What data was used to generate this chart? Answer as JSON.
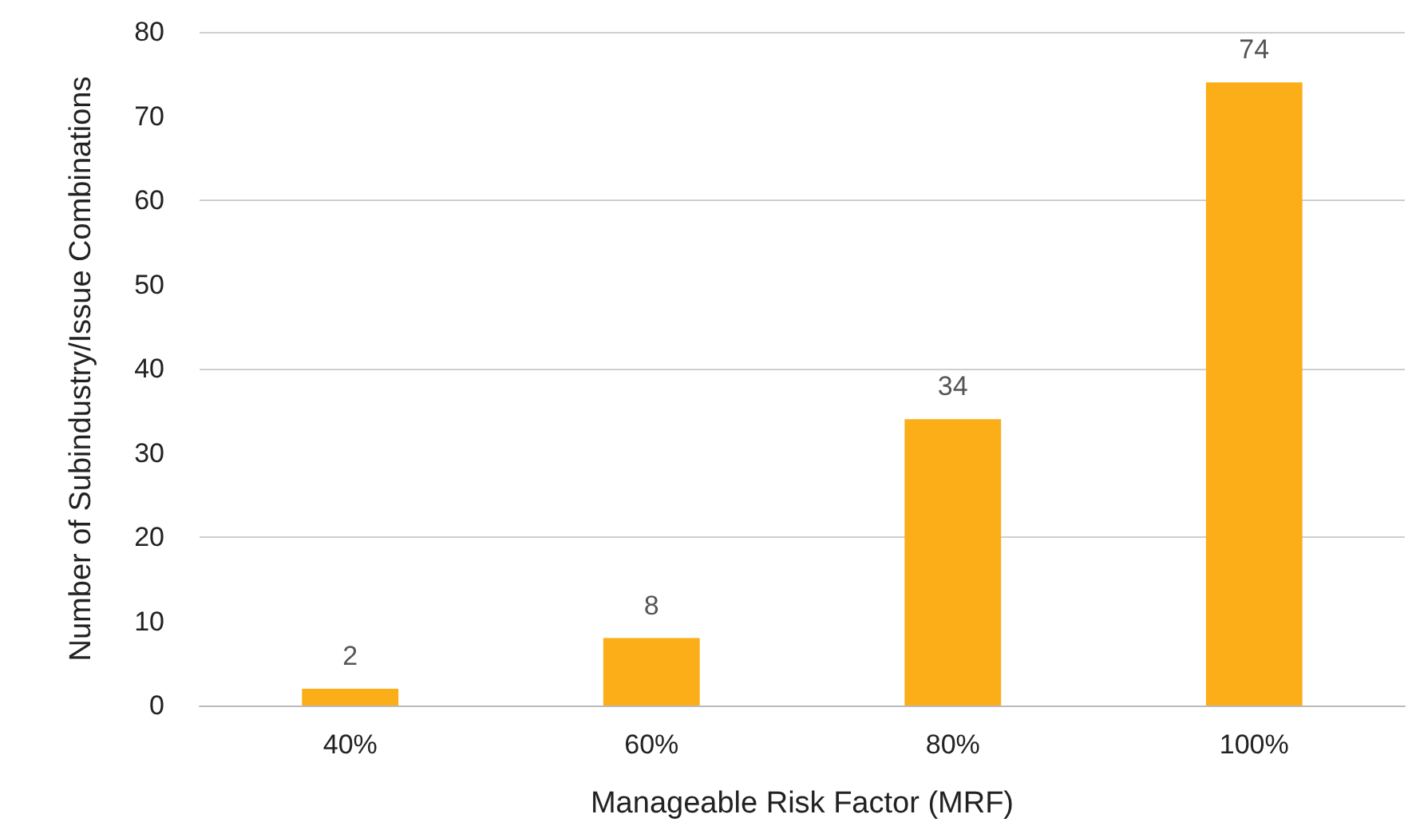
{
  "chart_data": {
    "type": "bar",
    "xlabel": "Manageable Risk Factor (MRF)",
    "ylabel": "Number of Subindustry/Issue Combinations",
    "categories": [
      "40%",
      "60%",
      "80%",
      "100%"
    ],
    "values": [
      2,
      8,
      34,
      74
    ],
    "color": "#fbae17",
    "ylim": [
      0,
      80
    ],
    "yticks": [
      0,
      10,
      20,
      30,
      40,
      50,
      60,
      70,
      80
    ],
    "grid": "y",
    "data_labels": true
  }
}
